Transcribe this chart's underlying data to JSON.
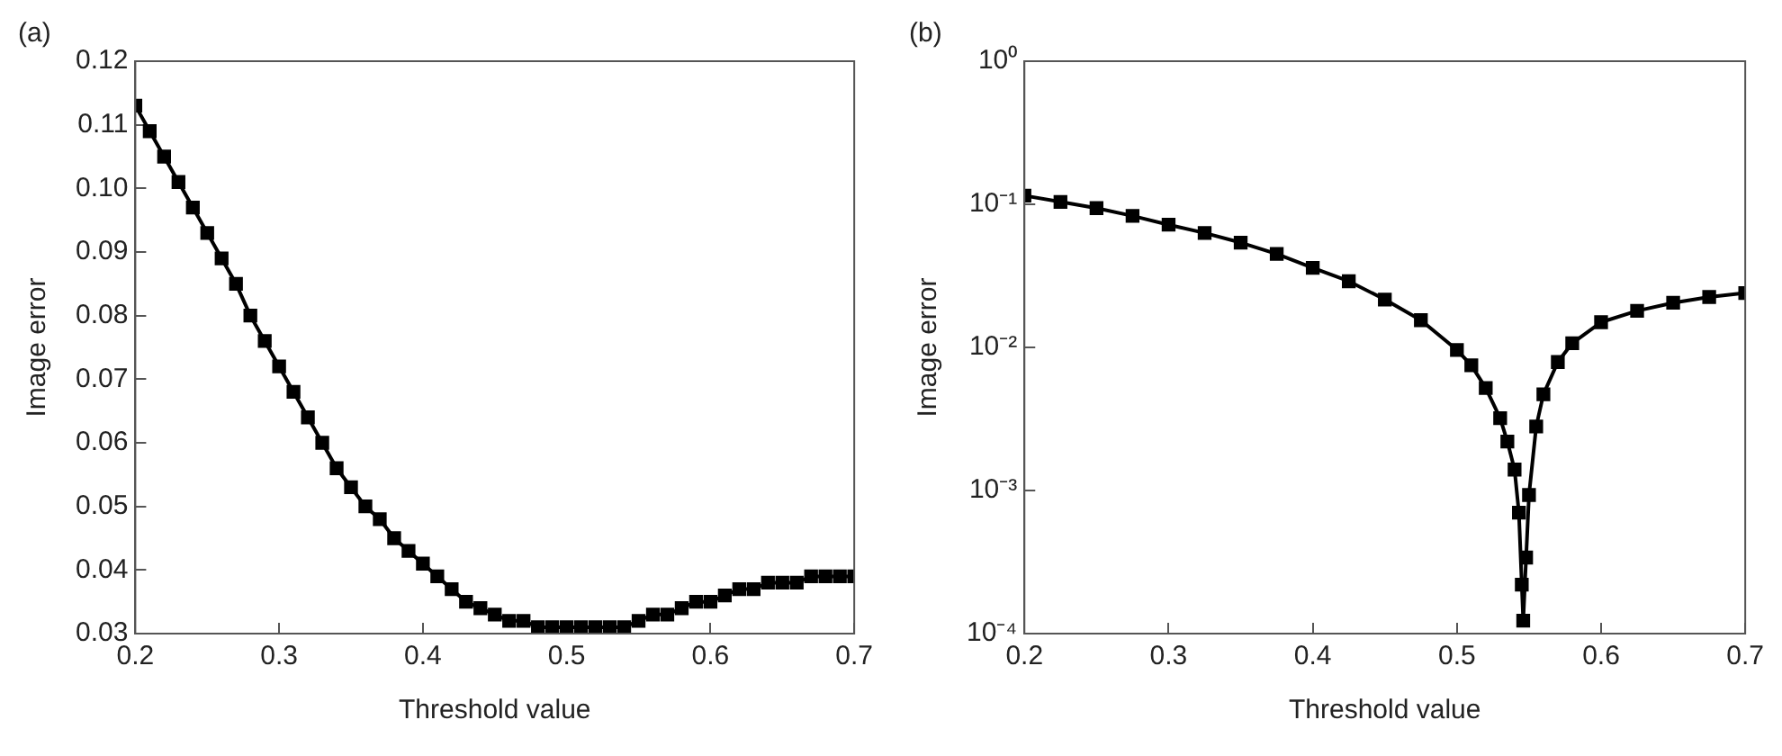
{
  "chart_data": [
    {
      "type": "line",
      "title": "(a)",
      "xlabel": "Threshold value",
      "ylabel": "Image error",
      "marker": "square",
      "grid": false,
      "xlim": [
        0.2,
        0.7
      ],
      "xticks": [
        0.2,
        0.3,
        0.4,
        0.5,
        0.6,
        0.7
      ],
      "ylim": [
        0.03,
        0.12
      ],
      "yticks": [
        0.03,
        0.04,
        0.05,
        0.06,
        0.07,
        0.08,
        0.09,
        {
          "value": 0.1,
          "label": "0.10"
        },
        0.11,
        0.12
      ],
      "x": [
        0.2,
        0.21,
        0.22,
        0.23,
        0.24,
        0.25,
        0.26,
        0.27,
        0.28,
        0.29,
        0.3,
        0.31,
        0.32,
        0.33,
        0.34,
        0.35,
        0.36,
        0.37,
        0.38,
        0.39,
        0.4,
        0.41,
        0.42,
        0.43,
        0.44,
        0.45,
        0.46,
        0.47,
        0.48,
        0.49,
        0.5,
        0.51,
        0.52,
        0.53,
        0.54,
        0.55,
        0.56,
        0.57,
        0.58,
        0.59,
        0.6,
        0.61,
        0.62,
        0.63,
        0.64,
        0.65,
        0.66,
        0.67,
        0.68,
        0.69,
        0.7
      ],
      "series": [
        {
          "color": "#000000",
          "values": [
            0.113,
            0.109,
            0.105,
            0.101,
            0.097,
            0.093,
            0.089,
            0.085,
            0.08,
            0.076,
            0.072,
            0.068,
            0.064,
            0.06,
            0.056,
            0.053,
            0.05,
            0.048,
            0.045,
            0.043,
            0.041,
            0.039,
            0.037,
            0.035,
            0.034,
            0.033,
            0.032,
            0.032,
            0.031,
            0.031,
            0.031,
            0.031,
            0.031,
            0.031,
            0.031,
            0.032,
            0.033,
            0.033,
            0.034,
            0.035,
            0.035,
            0.036,
            0.037,
            0.037,
            0.038,
            0.038,
            0.038,
            0.039,
            0.039,
            0.039,
            0.039
          ]
        }
      ]
    },
    {
      "type": "line",
      "title": "(b)",
      "xlabel": "Threshold value",
      "ylabel": "Image error",
      "marker": "square",
      "grid": false,
      "log": "y",
      "xlim": [
        0.2,
        0.7
      ],
      "xticks": [
        0.2,
        0.3,
        0.4,
        0.5,
        0.6,
        0.7
      ],
      "ylim": [
        0.0001,
        1
      ],
      "yticks": [
        {
          "value": 0.0001,
          "label": "10⁻⁴"
        },
        {
          "value": 0.001,
          "label": "10⁻³"
        },
        {
          "value": 0.01,
          "label": "10⁻²"
        },
        {
          "value": 0.1,
          "label": "10⁻¹"
        },
        {
          "value": 1,
          "label": "10⁰"
        }
      ],
      "x": [
        0.2,
        0.225,
        0.25,
        0.275,
        0.3,
        0.325,
        0.35,
        0.375,
        0.4,
        0.425,
        0.45,
        0.475,
        0.5,
        0.51,
        0.52,
        0.53,
        0.535,
        0.54,
        0.543,
        0.545,
        0.546,
        0.548,
        0.55,
        0.555,
        0.56,
        0.57,
        0.58,
        0.6,
        0.625,
        0.65,
        0.675,
        0.7
      ],
      "series": [
        {
          "color": "#000000",
          "values": [
            0.115,
            0.104,
            0.094,
            0.083,
            0.072,
            0.063,
            0.054,
            0.045,
            0.036,
            0.029,
            0.0216,
            0.0155,
            0.0096,
            0.0075,
            0.0052,
            0.0032,
            0.0022,
            0.0014,
            0.0007,
            0.00022,
            0.000123,
            0.00034,
            0.00093,
            0.0028,
            0.0047,
            0.0079,
            0.0107,
            0.015,
            0.018,
            0.0205,
            0.0225,
            0.024
          ]
        }
      ]
    }
  ]
}
